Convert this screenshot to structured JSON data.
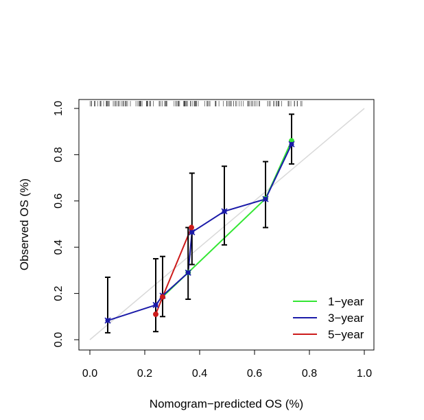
{
  "chart_data": {
    "type": "line",
    "title": "",
    "xlabel": "Nomogram−predicted OS (%)",
    "ylabel": "Observed OS (%)",
    "xlim": [
      0.0,
      1.0
    ],
    "ylim": [
      0.0,
      1.0
    ],
    "x_ticks": [
      "0.0",
      "0.2",
      "0.4",
      "0.6",
      "0.8",
      "1.0"
    ],
    "y_ticks": [
      "0.0",
      "0.2",
      "0.4",
      "0.6",
      "0.8",
      "1.0"
    ],
    "grid": false,
    "legend_position": "bottom-right",
    "reference_line": {
      "from": [
        0,
        0
      ],
      "to": [
        1,
        1
      ],
      "color": "#d9d9d9"
    },
    "series": [
      {
        "name": "1−year",
        "color": "#33e633",
        "x": [
          0.265,
          0.358,
          0.64,
          0.735
        ],
        "y": [
          0.185,
          0.29,
          0.61,
          0.86
        ]
      },
      {
        "name": "3−year",
        "color": "#1a1aa8",
        "x": [
          0.065,
          0.24,
          0.265,
          0.358,
          0.372,
          0.49,
          0.64,
          0.735
        ],
        "y": [
          0.083,
          0.15,
          0.19,
          0.29,
          0.465,
          0.555,
          0.608,
          0.845
        ]
      },
      {
        "name": "5−year",
        "color": "#cc1a1a",
        "x": [
          0.24,
          0.265,
          0.37
        ],
        "y": [
          0.11,
          0.185,
          0.485
        ]
      }
    ],
    "error_bars": [
      {
        "x": 0.065,
        "lower": 0.03,
        "upper": 0.27
      },
      {
        "x": 0.24,
        "lower": 0.035,
        "upper": 0.35
      },
      {
        "x": 0.265,
        "lower": 0.1,
        "upper": 0.36
      },
      {
        "x": 0.358,
        "lower": 0.175,
        "upper": 0.485
      },
      {
        "x": 0.372,
        "lower": 0.325,
        "upper": 0.72
      },
      {
        "x": 0.49,
        "lower": 0.41,
        "upper": 0.75
      },
      {
        "x": 0.64,
        "lower": 0.485,
        "upper": 0.77
      },
      {
        "x": 0.735,
        "lower": 0.76,
        "upper": 0.975
      }
    ]
  }
}
